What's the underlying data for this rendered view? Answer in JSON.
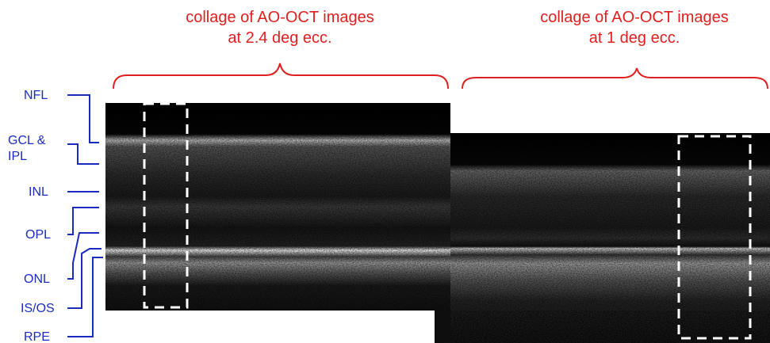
{
  "titles": [
    {
      "lines": [
        "collage of AO-OCT images",
        "at 2.4 deg ecc."
      ]
    },
    {
      "lines": [
        "collage of AO-OCT images",
        "at 1 deg ecc."
      ]
    }
  ],
  "layers": [
    "NFL",
    "GCL &",
    "IPL",
    "INL",
    "OPL",
    "ONL",
    "IS/OS",
    "RPE"
  ]
}
